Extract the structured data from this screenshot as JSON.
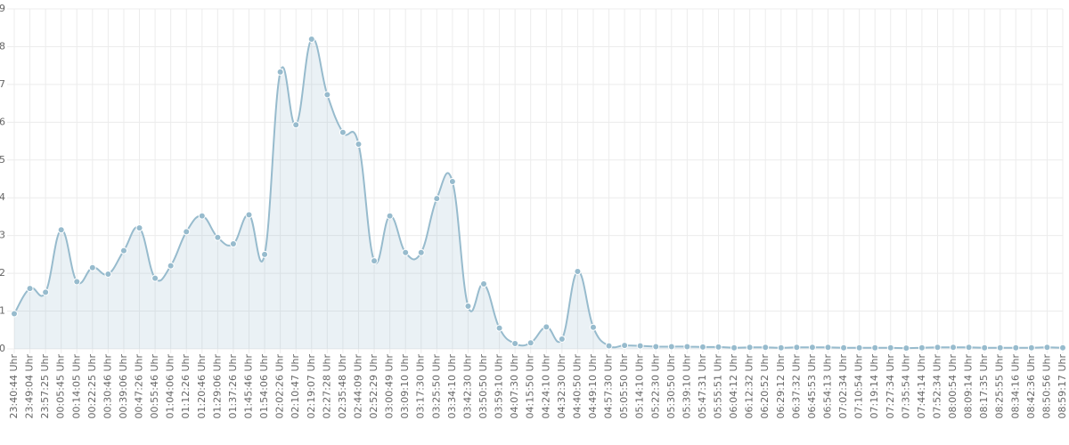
{
  "chart_data": {
    "type": "line",
    "categories": [
      "23:40:44 Uhr",
      "23:49:04 Uhr",
      "23:57:25 Uhr",
      "00:05:45 Uhr",
      "00:14:05 Uhr",
      "00:22:25 Uhr",
      "00:30:46 Uhr",
      "00:39:06 Uhr",
      "00:47:26 Uhr",
      "00:55:46 Uhr",
      "01:04:06 Uhr",
      "01:12:26 Uhr",
      "01:20:46 Uhr",
      "01:29:06 Uhr",
      "01:37:26 Uhr",
      "01:45:46 Uhr",
      "01:54:06 Uhr",
      "02:02:26 Uhr",
      "02:10:47 Uhr",
      "02:19:07 Uhr",
      "02:27:28 Uhr",
      "02:35:48 Uhr",
      "02:44:09 Uhr",
      "02:52:29 Uhr",
      "03:00:49 Uhr",
      "03:09:10 Uhr",
      "03:17:30 Uhr",
      "03:25:50 Uhr",
      "03:34:10 Uhr",
      "03:42:30 Uhr",
      "03:50:50 Uhr",
      "03:59:10 Uhr",
      "04:07:30 Uhr",
      "04:15:50 Uhr",
      "04:24:10 Uhr",
      "04:32:30 Uhr",
      "04:40:50 Uhr",
      "04:49:10 Uhr",
      "04:57:30 Uhr",
      "05:05:50 Uhr",
      "05:14:10 Uhr",
      "05:22:30 Uhr",
      "05:30:50 Uhr",
      "05:39:10 Uhr",
      "05:47:31 Uhr",
      "05:55:51 Uhr",
      "06:04:12 Uhr",
      "06:12:32 Uhr",
      "06:20:52 Uhr",
      "06:29:12 Uhr",
      "06:37:32 Uhr",
      "06:45:53 Uhr",
      "06:54:13 Uhr",
      "07:02:34 Uhr",
      "07:10:54 Uhr",
      "07:19:14 Uhr",
      "07:27:34 Uhr",
      "07:35:54 Uhr",
      "07:44:14 Uhr",
      "07:52:34 Uhr",
      "08:00:54 Uhr",
      "08:09:14 Uhr",
      "08:17:35 Uhr",
      "08:25:55 Uhr",
      "08:34:16 Uhr",
      "08:42:36 Uhr",
      "08:50:56 Uhr",
      "08:59:17 Uhr"
    ],
    "values": [
      0.93,
      1.6,
      1.5,
      3.15,
      1.78,
      2.15,
      1.98,
      2.6,
      3.2,
      1.87,
      2.2,
      3.1,
      3.52,
      2.95,
      2.78,
      3.55,
      2.5,
      7.33,
      5.93,
      8.2,
      6.73,
      5.73,
      5.42,
      2.33,
      3.52,
      2.55,
      2.55,
      3.98,
      4.43,
      1.13,
      1.72,
      0.55,
      0.14,
      0.16,
      0.58,
      0.26,
      2.05,
      0.57,
      0.08,
      0.09,
      0.08,
      0.06,
      0.06,
      0.06,
      0.05,
      0.05,
      0.03,
      0.04,
      0.04,
      0.03,
      0.04,
      0.04,
      0.04,
      0.03,
      0.03,
      0.03,
      0.03,
      0.02,
      0.03,
      0.04,
      0.04,
      0.04,
      0.03,
      0.03,
      0.03,
      0.03,
      0.04,
      0.03
    ],
    "color": "#97bbcd",
    "ylim": [
      0,
      9
    ],
    "yticks": [
      0,
      1,
      2,
      3,
      4,
      5,
      6,
      7,
      8,
      9
    ],
    "grid": true
  }
}
